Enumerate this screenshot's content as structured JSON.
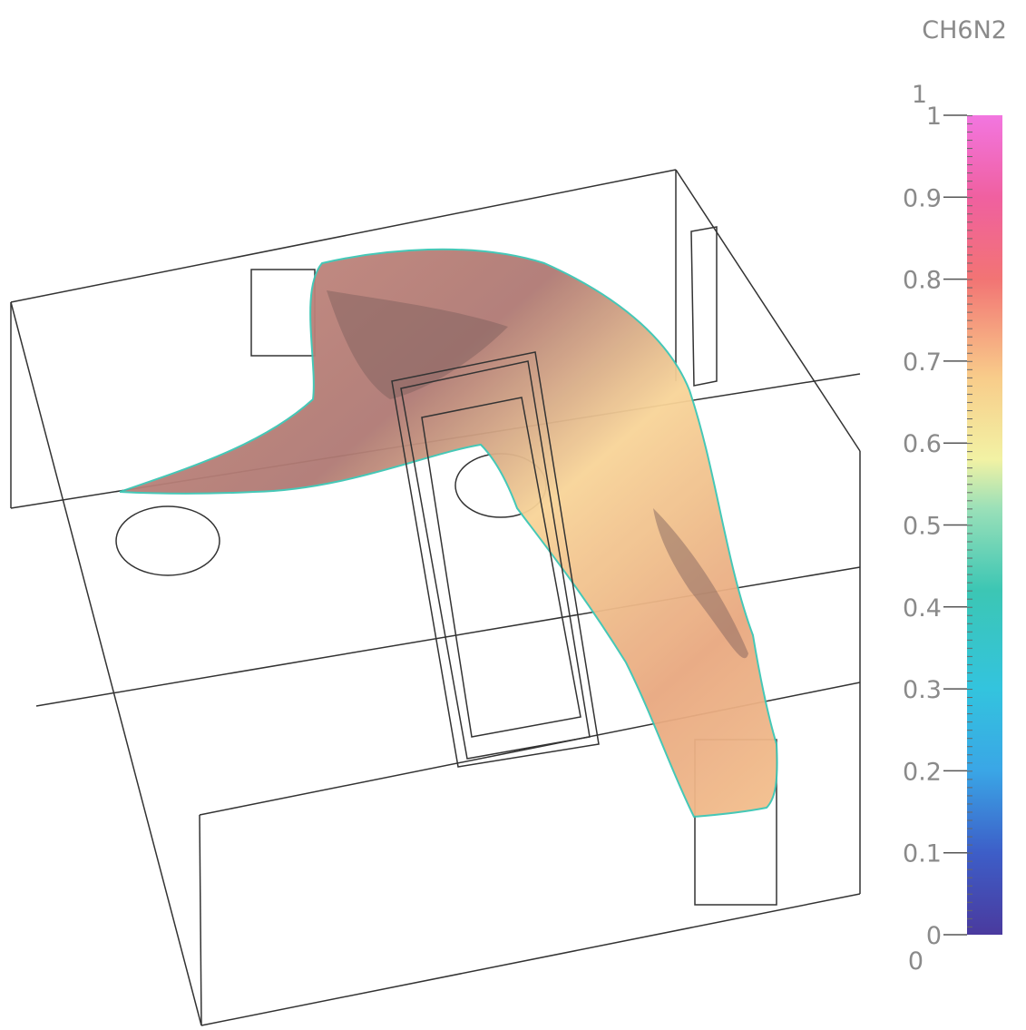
{
  "colorbar": {
    "title": "CH6N2",
    "range": [
      0,
      1
    ],
    "ticks": [
      0,
      0.1,
      0.2,
      0.3,
      0.4,
      0.5,
      0.6,
      0.7,
      0.8,
      0.9,
      1
    ]
  }
}
